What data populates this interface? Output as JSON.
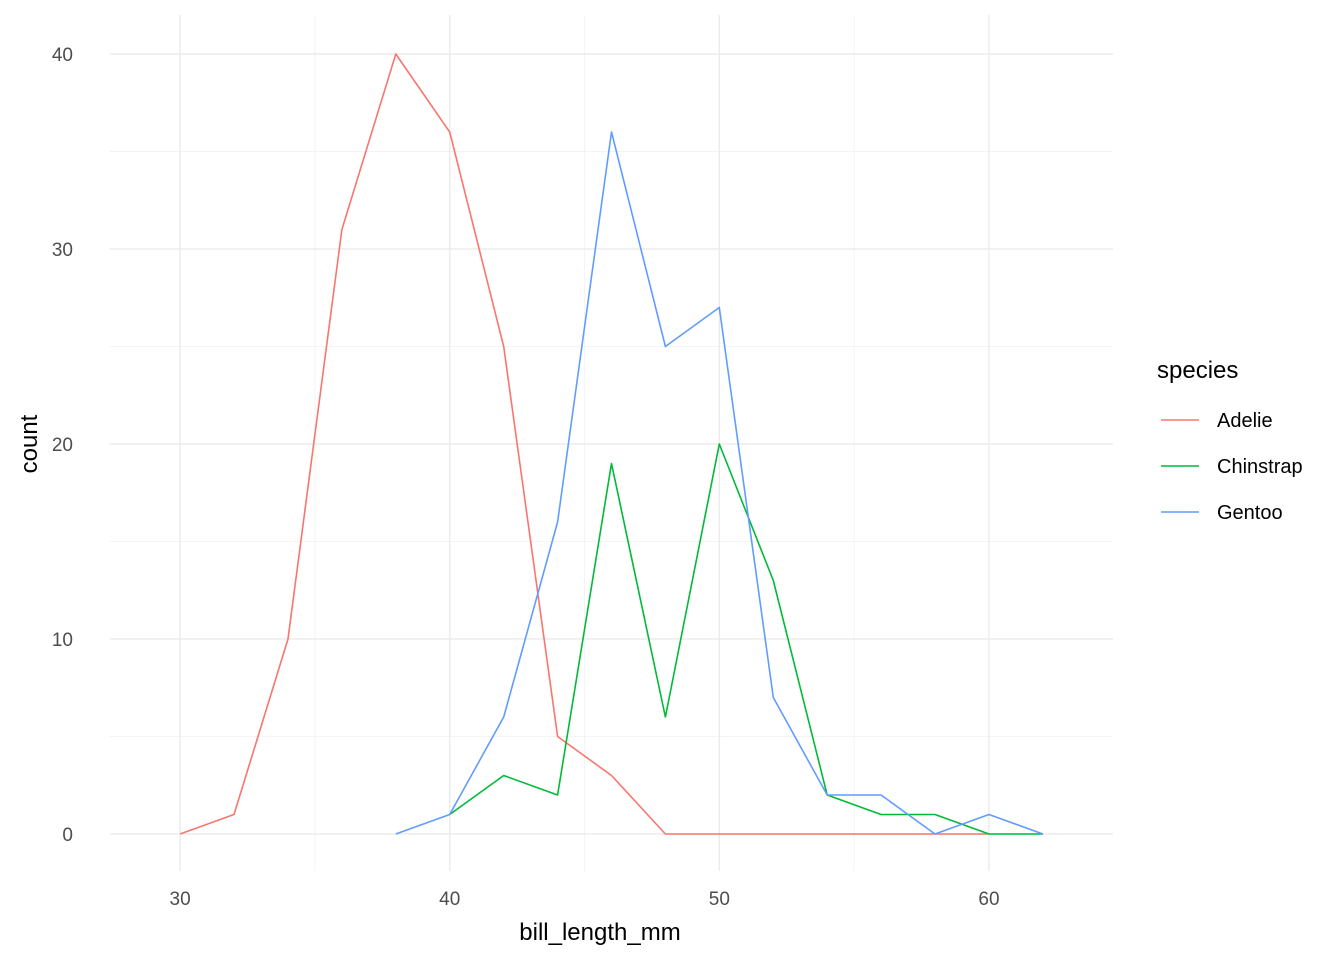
{
  "chart_data": {
    "type": "line",
    "title": "",
    "xlabel": "bill_length_mm",
    "ylabel": "count",
    "xlim": [
      27.4,
      64.6
    ],
    "ylim": [
      -1.9,
      42
    ],
    "xticks": [
      30,
      40,
      50,
      60
    ],
    "yticks": [
      0,
      10,
      20,
      30,
      40
    ],
    "grid": true,
    "legend": {
      "title": "species",
      "position": "right"
    },
    "x": [
      30,
      32,
      34,
      36,
      38,
      40,
      42,
      44,
      46,
      48,
      50,
      52,
      54,
      56,
      58,
      60,
      62
    ],
    "series": [
      {
        "name": "Adelie",
        "color": "#F8766D",
        "values": [
          0,
          1,
          10,
          31,
          40,
          36,
          25,
          5,
          3,
          0,
          0,
          0,
          0,
          0,
          0,
          0,
          null
        ]
      },
      {
        "name": "Chinstrap",
        "color": "#00BA38",
        "values": [
          null,
          null,
          null,
          null,
          null,
          1,
          3,
          2,
          19,
          6,
          20,
          13,
          2,
          1,
          1,
          0,
          0
        ]
      },
      {
        "name": "Gentoo",
        "color": "#619CFF",
        "values": [
          null,
          null,
          null,
          null,
          0,
          1,
          6,
          16,
          36,
          25,
          27,
          7,
          2,
          2,
          0,
          1,
          0
        ]
      }
    ]
  }
}
